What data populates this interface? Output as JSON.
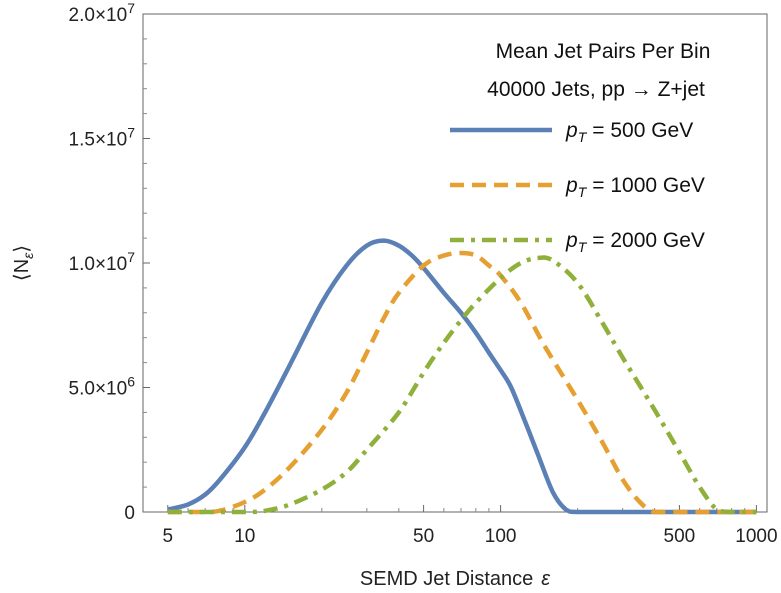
{
  "chart_data": {
    "type": "line",
    "x_scale": "log",
    "xlabel": "SEMD Jet Distance",
    "xlabel_symbol": "ε",
    "ylabel": "⟨N",
    "ylabel_sub": "ε",
    "ylabel_close": "⟩",
    "xlim": [
      4,
      1100
    ],
    "ylim": [
      0,
      20000000
    ],
    "x_ticks": [
      {
        "value": 5,
        "label": "5"
      },
      {
        "value": 10,
        "label": "10"
      },
      {
        "value": 50,
        "label": "50"
      },
      {
        "value": 100,
        "label": "100"
      },
      {
        "value": 500,
        "label": "500"
      },
      {
        "value": 1000,
        "label": "1000"
      }
    ],
    "y_ticks": [
      {
        "value": 0,
        "label": "0"
      },
      {
        "value": 5000000,
        "label": "5.0×10",
        "exp": "6"
      },
      {
        "value": 10000000,
        "label": "1.0×10",
        "exp": "7"
      },
      {
        "value": 15000000,
        "label": "1.5×10",
        "exp": "7"
      },
      {
        "value": 20000000,
        "label": "2.0×10",
        "exp": "7"
      }
    ],
    "legend": {
      "placement": "top-right",
      "title_line1": "Mean Jet Pairs Per Bin",
      "title_line2": "40000 Jets, pp → Z+jet"
    },
    "series": [
      {
        "name": "= 500 GeV",
        "name_prefix": "p",
        "name_sub": "T",
        "color": "#5b80b6",
        "dash": "solid",
        "x": [
          5,
          6,
          7,
          8,
          10,
          12,
          15,
          20,
          25,
          30,
          35,
          40,
          45,
          50,
          60,
          70,
          80,
          90,
          100,
          110,
          125,
          140,
          160,
          180,
          200,
          300,
          500,
          1000
        ],
        "y": [
          100000.0,
          300000.0,
          700000.0,
          1300000.0,
          2600000.0,
          4000000.0,
          5900000.0,
          8400000.0,
          9900000.0,
          10700000.0,
          10900000.0,
          10700000.0,
          10300000.0,
          9800000.0,
          8800000.0,
          8000000.0,
          7200000.0,
          6400000.0,
          5700000.0,
          5000000.0,
          3600000.0,
          2300000.0,
          800000.0,
          100000.0,
          0,
          0,
          0,
          0
        ]
      },
      {
        "name": "= 1000 GeV",
        "name_prefix": "p",
        "name_sub": "T",
        "color": "#e6a032",
        "dash": "dashed",
        "x": [
          5,
          7,
          8,
          10,
          12,
          15,
          20,
          25,
          30,
          35,
          40,
          50,
          60,
          70,
          80,
          90,
          100,
          120,
          150,
          200,
          250,
          300,
          350,
          400,
          500,
          1000
        ],
        "y": [
          0,
          0,
          50000.0,
          400000.0,
          900000.0,
          1800000.0,
          3300000.0,
          4800000.0,
          6400000.0,
          7800000.0,
          8800000.0,
          9900000.0,
          10300000.0,
          10400000.0,
          10300000.0,
          9900000.0,
          9500000.0,
          8400000.0,
          6600000.0,
          4500000.0,
          2800000.0,
          1300000.0,
          400000.0,
          0,
          0,
          0
        ]
      },
      {
        "name": "= 2000 GeV",
        "name_prefix": "p",
        "name_sub": "T",
        "color": "#8fb03a",
        "dash": "dashdot",
        "x": [
          5,
          10,
          12,
          15,
          20,
          25,
          30,
          40,
          50,
          60,
          70,
          80,
          100,
          120,
          140,
          160,
          200,
          250,
          300,
          400,
          500,
          600,
          700,
          800,
          1000
        ],
        "y": [
          0,
          0,
          50000.0,
          300000.0,
          900000.0,
          1600000.0,
          2500000.0,
          4000000.0,
          5600000.0,
          6800000.0,
          7700000.0,
          8400000.0,
          9400000.0,
          10000000.0,
          10200000.0,
          10100000.0,
          9200000.0,
          7600000.0,
          6200000.0,
          4100000.0,
          2400000.0,
          1000000.0,
          100000.0,
          0,
          0
        ]
      }
    ]
  }
}
